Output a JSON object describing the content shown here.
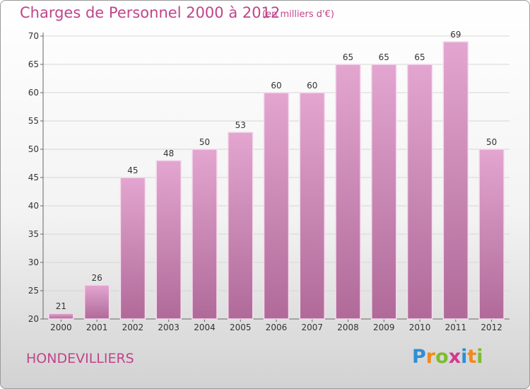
{
  "chart_data": {
    "type": "bar",
    "title": "Charges de Personnel 2000 à 2012",
    "subtitle": "(en milliers d'€)",
    "categories": [
      "2000",
      "2001",
      "2002",
      "2003",
      "2004",
      "2005",
      "2006",
      "2007",
      "2008",
      "2009",
      "2010",
      "2011",
      "2012"
    ],
    "values": [
      21,
      26,
      45,
      48,
      50,
      53,
      60,
      60,
      65,
      65,
      65,
      69,
      50
    ],
    "ylim": [
      20,
      70
    ],
    "yticks": [
      20,
      25,
      30,
      35,
      40,
      45,
      50,
      55,
      60,
      65,
      70
    ],
    "grid": true,
    "bar_color": "#d89bc3"
  },
  "commune": "HONDEVILLIERS",
  "logo": {
    "letters": [
      "P",
      "r",
      "o",
      "x",
      "i",
      "t",
      "i"
    ],
    "colors": [
      "#2e8fd4",
      "#f08a1c",
      "#7cbd2e",
      "#d23a8e",
      "#2e8fd4",
      "#f08a1c",
      "#7cbd2e"
    ]
  }
}
